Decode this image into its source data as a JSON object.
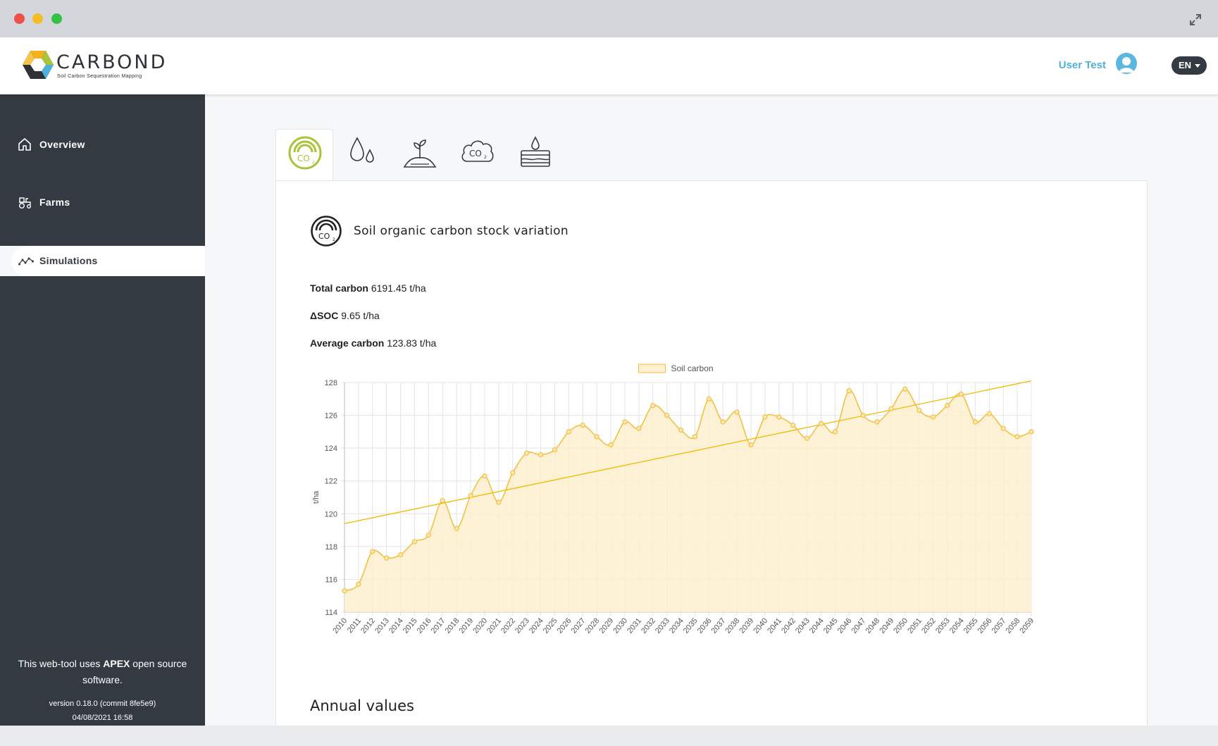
{
  "window": {
    "controls": [
      "close",
      "minimize",
      "maximize"
    ],
    "expand_icon": "expand-icon"
  },
  "header": {
    "brand": "CARBOND",
    "tagline": "Soil Carbon Sequestration Mapping",
    "user_name": "User Test",
    "language": "EN"
  },
  "sidebar": {
    "items": [
      {
        "label": "Overview",
        "icon": "home-icon"
      },
      {
        "label": "Farms",
        "icon": "tractor-icon"
      },
      {
        "label": "Simulations",
        "icon": "line-chart-icon",
        "active": true
      }
    ],
    "footer_prefix": "This web-tool uses ",
    "footer_bold": "APEX",
    "footer_suffix": " open source software.",
    "version": "version 0.18.0 (commit 8fe5e9)",
    "build_date": "04/08/2021 16:58"
  },
  "tabs": [
    {
      "icon": "co2-gauge-icon",
      "active": true
    },
    {
      "icon": "water-drops-icon"
    },
    {
      "icon": "plant-sprout-icon"
    },
    {
      "icon": "co2-cloud-icon"
    },
    {
      "icon": "water-layers-icon"
    }
  ],
  "panel": {
    "title": "Soil organic carbon stock variation",
    "stats": [
      {
        "label": "Total carbon",
        "value": "6191.45 t/ha"
      },
      {
        "label": "ΔSOC",
        "value": "9.65 t/ha"
      },
      {
        "label": "Average carbon",
        "value": "123.83 t/ha"
      }
    ],
    "annual_title": "Annual values"
  },
  "colors": {
    "sidebar": "#343a41",
    "accent_blue": "#4fb1d9",
    "active_tab_green": "#a8c43a",
    "series_line": "#f5c042",
    "series_fill": "#fdefcf"
  },
  "chart_data": {
    "type": "area",
    "legend": [
      "Soil carbon"
    ],
    "legend_position": "top",
    "ylabel": "t/ha",
    "ylim": [
      114,
      128
    ],
    "yticks": [
      114,
      116,
      118,
      120,
      122,
      124,
      126,
      128
    ],
    "grid": true,
    "x": [
      "2010",
      "2011",
      "2012",
      "2013",
      "2014",
      "2015",
      "2016",
      "2017",
      "2018",
      "2019",
      "2020",
      "2021",
      "2022",
      "2023",
      "2024",
      "2025",
      "2026",
      "2027",
      "2028",
      "2029",
      "2030",
      "2031",
      "2032",
      "2033",
      "2034",
      "2035",
      "2036",
      "2037",
      "2038",
      "2039",
      "2040",
      "2041",
      "2042",
      "2043",
      "2044",
      "2045",
      "2046",
      "2047",
      "2048",
      "2049",
      "2050",
      "2051",
      "2052",
      "2053",
      "2054",
      "2055",
      "2056",
      "2057",
      "2058",
      "2059"
    ],
    "series": [
      {
        "name": "Soil carbon",
        "values": [
          115.3,
          115.7,
          117.7,
          117.3,
          117.5,
          118.3,
          118.7,
          120.8,
          119.1,
          121.1,
          122.3,
          120.7,
          122.5,
          123.7,
          123.6,
          123.9,
          125.0,
          125.4,
          124.7,
          124.2,
          125.6,
          125.2,
          126.6,
          126.0,
          125.1,
          124.7,
          127.0,
          125.6,
          126.2,
          124.2,
          125.9,
          125.9,
          125.4,
          124.6,
          125.5,
          125.0,
          127.5,
          126.0,
          125.6,
          126.4,
          127.6,
          126.3,
          125.9,
          126.6,
          127.3,
          125.6,
          126.1,
          125.2,
          124.7,
          125.0
        ]
      }
    ],
    "trendline": {
      "start": [
        2010,
        119.4
      ],
      "end": [
        2059,
        128.1
      ]
    }
  }
}
